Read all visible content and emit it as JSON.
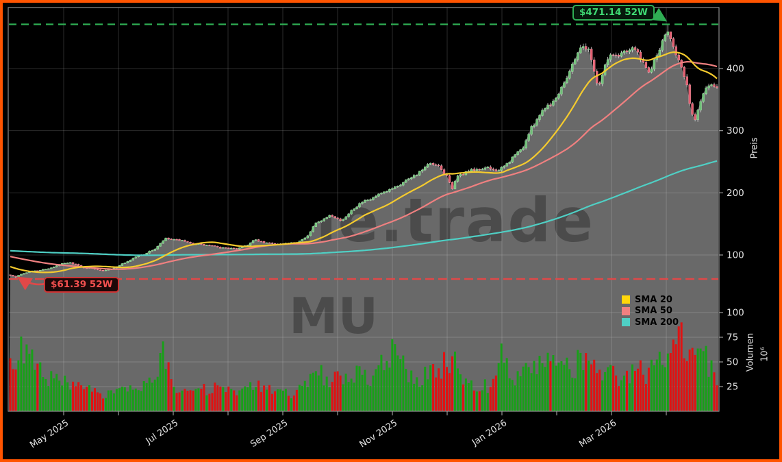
{
  "chart_data": {
    "type": "candlestick+volume",
    "symbol": "MU",
    "watermark": {
      "line1": "whale.trade",
      "line2": "MU"
    },
    "legend": [
      {
        "label": "SMA 20",
        "color": "#ffd60a",
        "text_color": "#f5cb2e"
      },
      {
        "label": "SMA 50",
        "color": "#f08080",
        "text_color": "#f08080"
      },
      {
        "label": "SMA 200",
        "color": "#4fd0c5",
        "text_color": "#4fd0c5"
      }
    ],
    "price_axis": {
      "label": "Preis",
      "ticks": [
        400,
        300,
        200,
        100
      ]
    },
    "volume_axis": {
      "label": "Volumen",
      "exponent": "10⁶",
      "ticks": [
        100,
        75,
        50,
        25
      ]
    },
    "x_axis": {
      "month_tick_count": 12,
      "labels": [
        {
          "label": "May 2025",
          "month_index": 1
        },
        {
          "label": "Jul 2025",
          "month_index": 3
        },
        {
          "label": "Sep 2025",
          "month_index": 5
        },
        {
          "label": "Nov 2025",
          "month_index": 7
        },
        {
          "label": "Jan 2026",
          "month_index": 9
        },
        {
          "label": "Mar 2026",
          "month_index": 11
        }
      ]
    },
    "annotations": {
      "high": {
        "text": "$471.14 52W",
        "value": 471.14
      },
      "low": {
        "text": "$61.39 52W",
        "value": 61.39
      }
    },
    "series": {
      "num_candles": 260,
      "high_52w": 471.14,
      "low_52w": 61.39,
      "last_close": 373,
      "close_anchors": [
        [
          0,
          68
        ],
        [
          0.007,
          64
        ],
        [
          0.016,
          70
        ],
        [
          0.031,
          74
        ],
        [
          0.045,
          76
        ],
        [
          0.06,
          80
        ],
        [
          0.074,
          86
        ],
        [
          0.084,
          88
        ],
        [
          0.094,
          84
        ],
        [
          0.103,
          80
        ],
        [
          0.118,
          78
        ],
        [
          0.132,
          75
        ],
        [
          0.147,
          79
        ],
        [
          0.161,
          87
        ],
        [
          0.176,
          96
        ],
        [
          0.185,
          100
        ],
        [
          0.195,
          104
        ],
        [
          0.205,
          110
        ],
        [
          0.219,
          126
        ],
        [
          0.238,
          124
        ],
        [
          0.258,
          118
        ],
        [
          0.277,
          116
        ],
        [
          0.296,
          112
        ],
        [
          0.32,
          110
        ],
        [
          0.335,
          116
        ],
        [
          0.345,
          124
        ],
        [
          0.359,
          120
        ],
        [
          0.374,
          118
        ],
        [
          0.393,
          118
        ],
        [
          0.407,
          121
        ],
        [
          0.422,
          132
        ],
        [
          0.431,
          150
        ],
        [
          0.446,
          160
        ],
        [
          0.451,
          165
        ],
        [
          0.47,
          155
        ],
        [
          0.485,
          175
        ],
        [
          0.494,
          182
        ],
        [
          0.514,
          192
        ],
        [
          0.528,
          200
        ],
        [
          0.542,
          208
        ],
        [
          0.557,
          218
        ],
        [
          0.571,
          228
        ],
        [
          0.586,
          238
        ],
        [
          0.593,
          248
        ],
        [
          0.605,
          242
        ],
        [
          0.62,
          225
        ],
        [
          0.625,
          205
        ],
        [
          0.634,
          228
        ],
        [
          0.649,
          235
        ],
        [
          0.663,
          238
        ],
        [
          0.678,
          240
        ],
        [
          0.692,
          235
        ],
        [
          0.707,
          252
        ],
        [
          0.716,
          262
        ],
        [
          0.726,
          275
        ],
        [
          0.736,
          300
        ],
        [
          0.745,
          320
        ],
        [
          0.755,
          335
        ],
        [
          0.765,
          345
        ],
        [
          0.774,
          355
        ],
        [
          0.784,
          380
        ],
        [
          0.793,
          400
        ],
        [
          0.803,
          425
        ],
        [
          0.81,
          440
        ],
        [
          0.818,
          430
        ],
        [
          0.827,
          395
        ],
        [
          0.832,
          370
        ],
        [
          0.842,
          405
        ],
        [
          0.851,
          425
        ],
        [
          0.861,
          420
        ],
        [
          0.871,
          430
        ],
        [
          0.88,
          435
        ],
        [
          0.89,
          420
        ],
        [
          0.9,
          400
        ],
        [
          0.904,
          390
        ],
        [
          0.914,
          420
        ],
        [
          0.924,
          445
        ],
        [
          0.931,
          460
        ],
        [
          0.938,
          440
        ],
        [
          0.948,
          405
        ],
        [
          0.958,
          370
        ],
        [
          0.964,
          330
        ],
        [
          0.969,
          315
        ],
        [
          0.977,
          350
        ],
        [
          0.984,
          372
        ],
        [
          1,
          373
        ]
      ],
      "volume_anchors": [
        [
          0,
          48
        ],
        [
          0.01,
          55
        ],
        [
          0.02,
          62
        ],
        [
          0.04,
          40
        ],
        [
          0.07,
          30
        ],
        [
          0.1,
          22
        ],
        [
          0.13,
          18
        ],
        [
          0.16,
          20
        ],
        [
          0.19,
          24
        ],
        [
          0.205,
          30
        ],
        [
          0.215,
          60
        ],
        [
          0.23,
          28
        ],
        [
          0.26,
          20
        ],
        [
          0.3,
          24
        ],
        [
          0.32,
          18
        ],
        [
          0.35,
          26
        ],
        [
          0.37,
          20
        ],
        [
          0.4,
          18
        ],
        [
          0.42,
          25
        ],
        [
          0.43,
          45
        ],
        [
          0.44,
          38
        ],
        [
          0.47,
          30
        ],
        [
          0.49,
          42
        ],
        [
          0.51,
          28
        ],
        [
          0.54,
          62
        ],
        [
          0.57,
          30
        ],
        [
          0.59,
          38
        ],
        [
          0.61,
          45
        ],
        [
          0.625,
          52
        ],
        [
          0.65,
          30
        ],
        [
          0.68,
          25
        ],
        [
          0.692,
          60
        ],
        [
          0.71,
          35
        ],
        [
          0.73,
          40
        ],
        [
          0.75,
          45
        ],
        [
          0.765,
          55
        ],
        [
          0.78,
          40
        ],
        [
          0.8,
          45
        ],
        [
          0.81,
          58
        ],
        [
          0.82,
          45
        ],
        [
          0.83,
          40
        ],
        [
          0.85,
          38
        ],
        [
          0.87,
          35
        ],
        [
          0.89,
          42
        ],
        [
          0.9,
          38
        ],
        [
          0.914,
          60
        ],
        [
          0.924,
          55
        ],
        [
          0.931,
          58
        ],
        [
          0.94,
          66
        ],
        [
          0.95,
          72
        ],
        [
          0.958,
          64
        ],
        [
          0.964,
          60
        ],
        [
          0.97,
          55
        ],
        [
          0.977,
          74
        ],
        [
          0.984,
          52
        ],
        [
          1,
          32
        ]
      ]
    },
    "colors": {
      "border": "#ff5400",
      "background": "#000000",
      "area_fill": "#696969",
      "watermark": "rgba(0,0,0,0.28)",
      "candle_up": "#6ec177",
      "candle_up_edge": "#9adb9f",
      "candle_down": "#e25b6d",
      "candle_down_edge": "#ef8f9c",
      "wick": "#cfcfcf",
      "volume_up": "#18a018",
      "volume_down": "#e01212",
      "sma20": "#f5cb2e",
      "sma50": "#f08080",
      "sma200": "#4fd0c5",
      "grid": "rgba(255,255,255,0.17)",
      "frame": "#9a9a9a",
      "tick_text": "#e2e2e2",
      "high_line": "#2fae54",
      "low_line": "#e04848"
    }
  }
}
